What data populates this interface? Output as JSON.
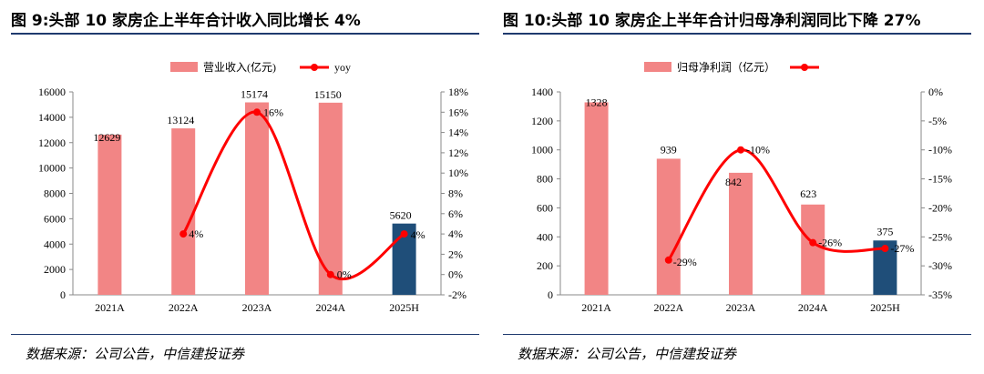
{
  "colors": {
    "bar": "#f28585",
    "bar_highlight": "#1f4e79",
    "line": "#ff0000",
    "rule": "#1f3a6e"
  },
  "left": {
    "title": "图 9:头部 10 家房企上半年合计收入同比增长 4%",
    "source": "数据来源：公司公告，中信建投证券",
    "chart_data": {
      "type": "bar",
      "categories": [
        "2021A",
        "2022A",
        "2023A",
        "2024A",
        "2025H"
      ],
      "series": [
        {
          "name": "营业收入(亿元)",
          "type": "bar",
          "axis": "left",
          "values": [
            12629,
            13124,
            15174,
            15150,
            5620
          ],
          "labels": [
            "12629",
            "13124",
            "15174",
            "15150",
            "5620"
          ]
        },
        {
          "name": "yoy",
          "type": "line",
          "axis": "right",
          "values": [
            null,
            4,
            16,
            0,
            4
          ],
          "labels": [
            "",
            "4%",
            "16%",
            "0%",
            "4%"
          ]
        }
      ],
      "highlight_index": 4,
      "ylim_left": [
        0,
        16000
      ],
      "yticks_left": [
        "0",
        "2000",
        "4000",
        "6000",
        "8000",
        "10000",
        "12000",
        "14000",
        "16000"
      ],
      "ylim_right": [
        -2,
        18
      ],
      "yticks_right": [
        "-2%",
        "0%",
        "2%",
        "4%",
        "6%",
        "8%",
        "10%",
        "12%",
        "14%",
        "16%",
        "18%"
      ],
      "legend_position": "top-center",
      "grid": false
    }
  },
  "right": {
    "title": "图 10:头部 10 家房企上半年合计归母净利润同比下降 27%",
    "source": "数据来源：公司公告，中信建投证券",
    "chart_data": {
      "type": "bar",
      "categories": [
        "2021A",
        "2022A",
        "2023A",
        "2024A",
        "2025H"
      ],
      "series": [
        {
          "name": "归母净利润（亿元）",
          "type": "bar",
          "axis": "left",
          "values": [
            1328,
            939,
            842,
            623,
            375
          ],
          "labels": [
            "1328",
            "939",
            "842",
            "623",
            "375"
          ]
        },
        {
          "name": "",
          "type": "line",
          "axis": "right",
          "values": [
            null,
            -29,
            -10,
            -26,
            -27
          ],
          "labels": [
            "",
            "-29%",
            "-10%",
            "-26%",
            "-27%"
          ]
        }
      ],
      "highlight_index": 4,
      "ylim_left": [
        0,
        1400
      ],
      "yticks_left": [
        "0",
        "200",
        "400",
        "600",
        "800",
        "1000",
        "1200",
        "1400"
      ],
      "ylim_right": [
        -35,
        0
      ],
      "yticks_right": [
        "-35%",
        "-30%",
        "-25%",
        "-20%",
        "-15%",
        "-10%",
        "-5%",
        "0%"
      ],
      "legend_position": "top-center",
      "grid": false
    }
  }
}
